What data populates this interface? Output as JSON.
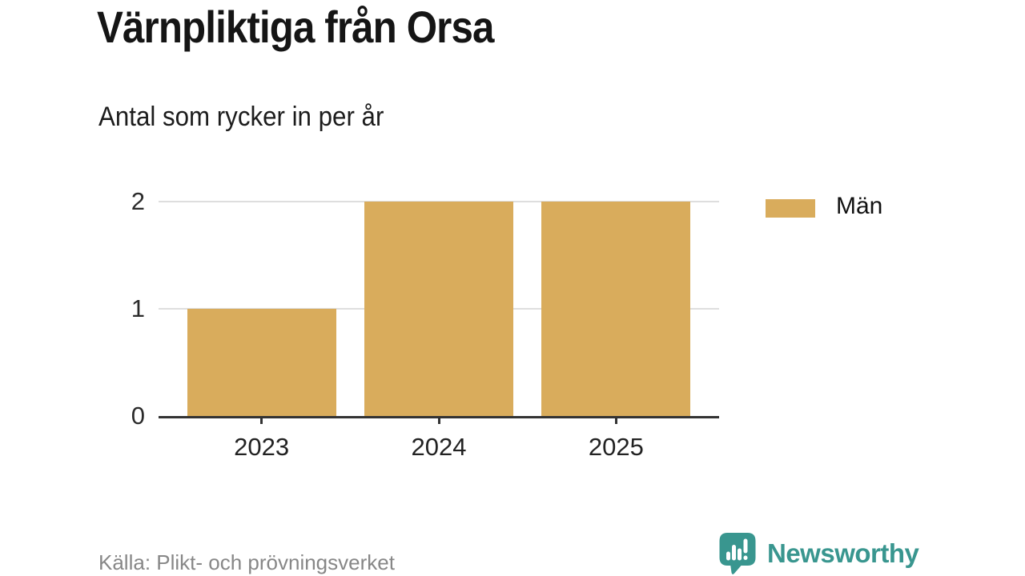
{
  "header": {
    "title": "Värnpliktiga från Orsa",
    "subtitle": "Antal som rycker in per år"
  },
  "chart_data": {
    "type": "bar",
    "title": "Värnpliktiga från Orsa",
    "subtitle": "Antal som rycker in per år",
    "categories": [
      "2023",
      "2024",
      "2025"
    ],
    "series": [
      {
        "name": "Män",
        "values": [
          1,
          2,
          2
        ]
      }
    ],
    "xlabel": "",
    "ylabel": "",
    "ylim": [
      0,
      2
    ],
    "yticks": [
      0,
      1,
      2
    ],
    "grid": true,
    "legend_position": "right",
    "bar_color": "#D9AC5C",
    "gridline_color": "#dedede",
    "axis_color": "#333333"
  },
  "legend": {
    "items": [
      {
        "label": "Män",
        "color": "#D9AC5C"
      }
    ]
  },
  "footer": {
    "source": "Källa: Plikt- och prövningsverket"
  },
  "brand": {
    "name": "Newsworthy",
    "color": "#39968F",
    "icon": "newsworthy-speech-bubble-chart-icon"
  }
}
